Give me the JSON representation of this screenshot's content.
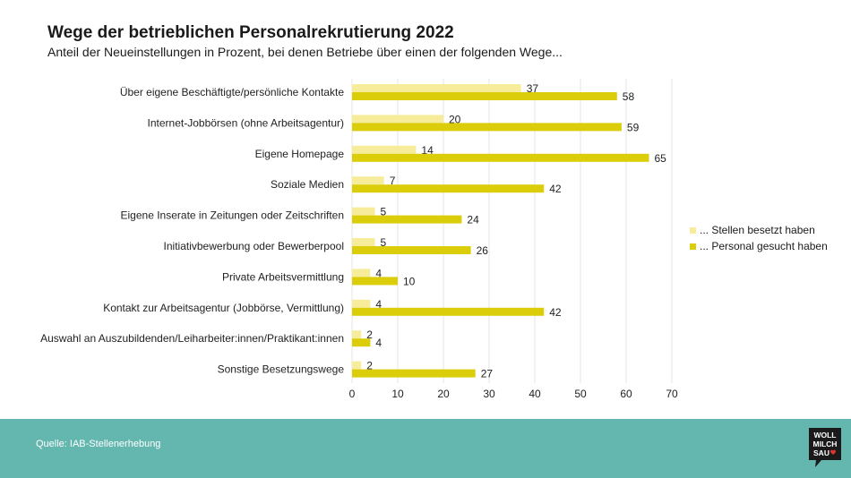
{
  "title": "Wege der betrieblichen Personalrekrutierung 2022",
  "subtitle": "Anteil der Neueinstellungen in Prozent, bei denen Betriebe über einen der folgenden Wege...",
  "footer": {
    "source": "Quelle: IAB-Stellenerhebung",
    "logo_lines": [
      "WOLL",
      "MILCH",
      "SAU"
    ],
    "logo_icon": "heart-icon"
  },
  "colors": {
    "filled": "#f7ec9a",
    "sought": "#dccd0a",
    "footer_bg": "#63b7af",
    "grid": "#e4e4e4"
  },
  "chart_data": {
    "type": "bar",
    "orientation": "horizontal",
    "categories": [
      "Über eigene Beschäftigte/persönliche Kontakte",
      "Internet-Jobbörsen (ohne Arbeitsagentur)",
      "Eigene Homepage",
      "Soziale Medien",
      "Eigene Inserate in Zeitungen oder Zeitschriften",
      "Initiativbewerbung oder Bewerberpool",
      "Private Arbeitsvermittlung",
      "Kontakt zur Arbeitsagentur (Jobbörse, Vermittlung)",
      "Auswahl an Auszubildenden/Leiharbeiter:innen/Praktikant:innen",
      "Sonstige Besetzungswege"
    ],
    "series": [
      {
        "name": "... Stellen besetzt haben",
        "values": [
          37,
          20,
          14,
          7,
          5,
          5,
          4,
          4,
          2,
          2
        ]
      },
      {
        "name": "... Personal gesucht haben",
        "values": [
          58,
          59,
          65,
          42,
          24,
          26,
          10,
          42,
          4,
          27
        ]
      }
    ],
    "xlim": [
      0,
      70
    ],
    "xticks": [
      0,
      10,
      20,
      30,
      40,
      50,
      60,
      70
    ],
    "grid": true,
    "legend_position": "right"
  }
}
